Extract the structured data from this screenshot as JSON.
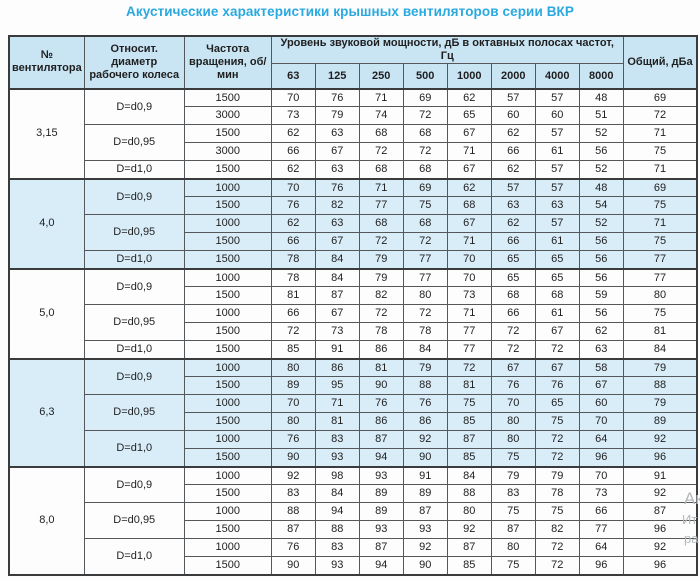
{
  "title": "Акустические характеристики крышных вентиляторов серии ВКР",
  "colors": {
    "title_text": "#29a9e0",
    "header_bg": "#c9e5f4",
    "shaded_group_bg": "#d9edf9",
    "border": "#55585a"
  },
  "watermark": [
    "Ак",
    "Ит",
    "ра"
  ],
  "table": {
    "headers": {
      "fan_no": "№ вентилятора",
      "diameter": "Относит. диаметр рабочего колеса",
      "speed": "Частота вращения, об/мин",
      "spl_group": "Уровень звуковой мощности, дБ в октавных полосах частот, Гц",
      "frequencies": [
        "63",
        "125",
        "250",
        "500",
        "1000",
        "2000",
        "4000",
        "8000"
      ],
      "total": "Общий, дБа"
    },
    "groups": [
      {
        "fan": "3,15",
        "shaded": false,
        "subgroups": [
          {
            "diameter": "D=d0,9",
            "rows": [
              {
                "speed": "1500",
                "values": [
                  70,
                  76,
                  71,
                  69,
                  62,
                  57,
                  57,
                  48
                ],
                "total": 69
              },
              {
                "speed": "3000",
                "values": [
                  73,
                  79,
                  74,
                  72,
                  65,
                  60,
                  60,
                  51
                ],
                "total": 72
              }
            ]
          },
          {
            "diameter": "D=d0,95",
            "rows": [
              {
                "speed": "1500",
                "values": [
                  62,
                  63,
                  68,
                  68,
                  67,
                  62,
                  57,
                  52
                ],
                "total": 71
              },
              {
                "speed": "3000",
                "values": [
                  66,
                  67,
                  72,
                  72,
                  71,
                  66,
                  61,
                  56
                ],
                "total": 75
              }
            ]
          },
          {
            "diameter": "D=d1,0",
            "rows": [
              {
                "speed": "1500",
                "values": [
                  62,
                  63,
                  68,
                  68,
                  67,
                  62,
                  57,
                  52
                ],
                "total": 71
              }
            ]
          }
        ]
      },
      {
        "fan": "4,0",
        "shaded": true,
        "subgroups": [
          {
            "diameter": "D=d0,9",
            "rows": [
              {
                "speed": "1000",
                "values": [
                  70,
                  76,
                  71,
                  69,
                  62,
                  57,
                  57,
                  48
                ],
                "total": 69
              },
              {
                "speed": "1500",
                "values": [
                  76,
                  82,
                  77,
                  75,
                  68,
                  63,
                  63,
                  54
                ],
                "total": 75
              }
            ]
          },
          {
            "diameter": "D=d0,95",
            "rows": [
              {
                "speed": "1000",
                "values": [
                  62,
                  63,
                  68,
                  68,
                  67,
                  62,
                  57,
                  52
                ],
                "total": 71
              },
              {
                "speed": "1500",
                "values": [
                  66,
                  67,
                  72,
                  72,
                  71,
                  66,
                  61,
                  56
                ],
                "total": 75
              }
            ]
          },
          {
            "diameter": "D=d1,0",
            "rows": [
              {
                "speed": "1500",
                "values": [
                  78,
                  84,
                  79,
                  77,
                  70,
                  65,
                  65,
                  56
                ],
                "total": 77
              }
            ]
          }
        ]
      },
      {
        "fan": "5,0",
        "shaded": false,
        "subgroups": [
          {
            "diameter": "D=d0,9",
            "rows": [
              {
                "speed": "1000",
                "values": [
                  78,
                  84,
                  79,
                  77,
                  70,
                  65,
                  65,
                  56
                ],
                "total": 77
              },
              {
                "speed": "1500",
                "values": [
                  81,
                  87,
                  82,
                  80,
                  73,
                  68,
                  68,
                  59
                ],
                "total": 80
              }
            ]
          },
          {
            "diameter": "D=d0,95",
            "rows": [
              {
                "speed": "1000",
                "values": [
                  66,
                  67,
                  72,
                  72,
                  71,
                  66,
                  61,
                  56
                ],
                "total": 75
              },
              {
                "speed": "1500",
                "values": [
                  72,
                  73,
                  78,
                  78,
                  77,
                  72,
                  67,
                  62
                ],
                "total": 81
              }
            ]
          },
          {
            "diameter": "D=d1,0",
            "rows": [
              {
                "speed": "1500",
                "values": [
                  85,
                  91,
                  86,
                  84,
                  77,
                  72,
                  72,
                  63
                ],
                "total": 84
              }
            ]
          }
        ]
      },
      {
        "fan": "6,3",
        "shaded": true,
        "subgroups": [
          {
            "diameter": "D=d0,9",
            "rows": [
              {
                "speed": "1000",
                "values": [
                  80,
                  86,
                  81,
                  79,
                  72,
                  67,
                  67,
                  58
                ],
                "total": 79
              },
              {
                "speed": "1500",
                "values": [
                  89,
                  95,
                  90,
                  88,
                  81,
                  76,
                  76,
                  67
                ],
                "total": 88
              }
            ]
          },
          {
            "diameter": "D=d0,95",
            "rows": [
              {
                "speed": "1000",
                "values": [
                  70,
                  71,
                  76,
                  76,
                  75,
                  70,
                  65,
                  60
                ],
                "total": 79
              },
              {
                "speed": "1500",
                "values": [
                  80,
                  81,
                  86,
                  86,
                  85,
                  80,
                  75,
                  70
                ],
                "total": 89
              }
            ]
          },
          {
            "diameter": "D=d1,0",
            "rows": [
              {
                "speed": "1000",
                "values": [
                  76,
                  83,
                  87,
                  92,
                  87,
                  80,
                  72,
                  64
                ],
                "total": 92
              },
              {
                "speed": "1500",
                "values": [
                  90,
                  93,
                  94,
                  90,
                  85,
                  75,
                  72,
                  96
                ],
                "total": 96
              }
            ]
          }
        ]
      },
      {
        "fan": "8,0",
        "shaded": false,
        "subgroups": [
          {
            "diameter": "D=d0,9",
            "rows": [
              {
                "speed": "1000",
                "values": [
                  92,
                  98,
                  93,
                  91,
                  84,
                  79,
                  79,
                  70
                ],
                "total": 91
              },
              {
                "speed": "1500",
                "values": [
                  83,
                  84,
                  89,
                  89,
                  88,
                  83,
                  78,
                  73
                ],
                "total": 92
              }
            ]
          },
          {
            "diameter": "D=d0,95",
            "rows": [
              {
                "speed": "1000",
                "values": [
                  88,
                  94,
                  89,
                  87,
                  80,
                  75,
                  75,
                  66
                ],
                "total": 87
              },
              {
                "speed": "1500",
                "values": [
                  87,
                  88,
                  93,
                  93,
                  92,
                  87,
                  82,
                  77
                ],
                "total": 96
              }
            ]
          },
          {
            "diameter": "D=d1,0",
            "rows": [
              {
                "speed": "1000",
                "values": [
                  76,
                  83,
                  87,
                  92,
                  87,
                  80,
                  72,
                  64
                ],
                "total": 92
              },
              {
                "speed": "1500",
                "values": [
                  90,
                  93,
                  94,
                  90,
                  85,
                  75,
                  72,
                  96
                ],
                "total": 96
              }
            ]
          }
        ]
      }
    ]
  }
}
